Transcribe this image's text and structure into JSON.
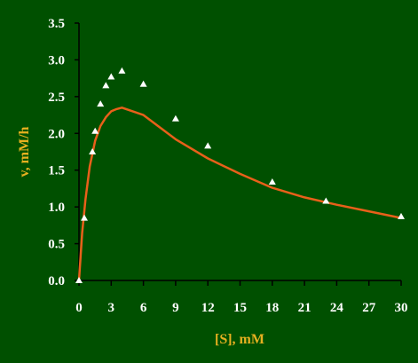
{
  "chart_data": {
    "type": "scatter",
    "title": "",
    "xlabel": "[S], mM",
    "ylabel": "v, mM/h",
    "xlim": [
      0,
      30
    ],
    "ylim": [
      0,
      3.5
    ],
    "x_ticks": [
      0,
      3,
      6,
      9,
      12,
      15,
      18,
      21,
      24,
      27,
      30
    ],
    "y_ticks": [
      0.0,
      0.5,
      1.0,
      1.5,
      2.0,
      2.5,
      3.0,
      3.5
    ],
    "x_tick_labels": [
      "0",
      "3",
      "6",
      "9",
      "12",
      "15",
      "18",
      "21",
      "24",
      "27",
      "30"
    ],
    "y_tick_labels": [
      "0.0",
      "0.5",
      "1.0",
      "1.5",
      "2.0",
      "2.5",
      "3.0",
      "3.5"
    ],
    "grid": false,
    "legend": "none",
    "series": [
      {
        "kind": "markers",
        "marker": "triangle",
        "color": "#ffffff",
        "x": [
          0,
          0.5,
          1.25,
          1.5,
          2.0,
          2.5,
          3.0,
          4.0,
          6.0,
          9.0,
          12.0,
          18.0,
          23.0,
          30.0
        ],
        "y": [
          0.0,
          0.85,
          1.75,
          2.03,
          2.4,
          2.65,
          2.77,
          2.85,
          2.67,
          2.2,
          1.83,
          1.34,
          1.08,
          0.87
        ]
      },
      {
        "kind": "line",
        "color": "#e8601a",
        "x": [
          0,
          0.3,
          0.6,
          1.0,
          1.5,
          2.0,
          2.5,
          3.0,
          3.5,
          4.0,
          5.0,
          6.0,
          9.0,
          12.0,
          15.0,
          18.0,
          21.0,
          24.0,
          27.0,
          30.0
        ],
        "y": [
          0.0,
          0.65,
          1.1,
          1.55,
          1.9,
          2.1,
          2.22,
          2.3,
          2.33,
          2.35,
          2.3,
          2.25,
          1.92,
          1.66,
          1.45,
          1.26,
          1.13,
          1.03,
          0.94,
          0.85
        ]
      }
    ]
  }
}
